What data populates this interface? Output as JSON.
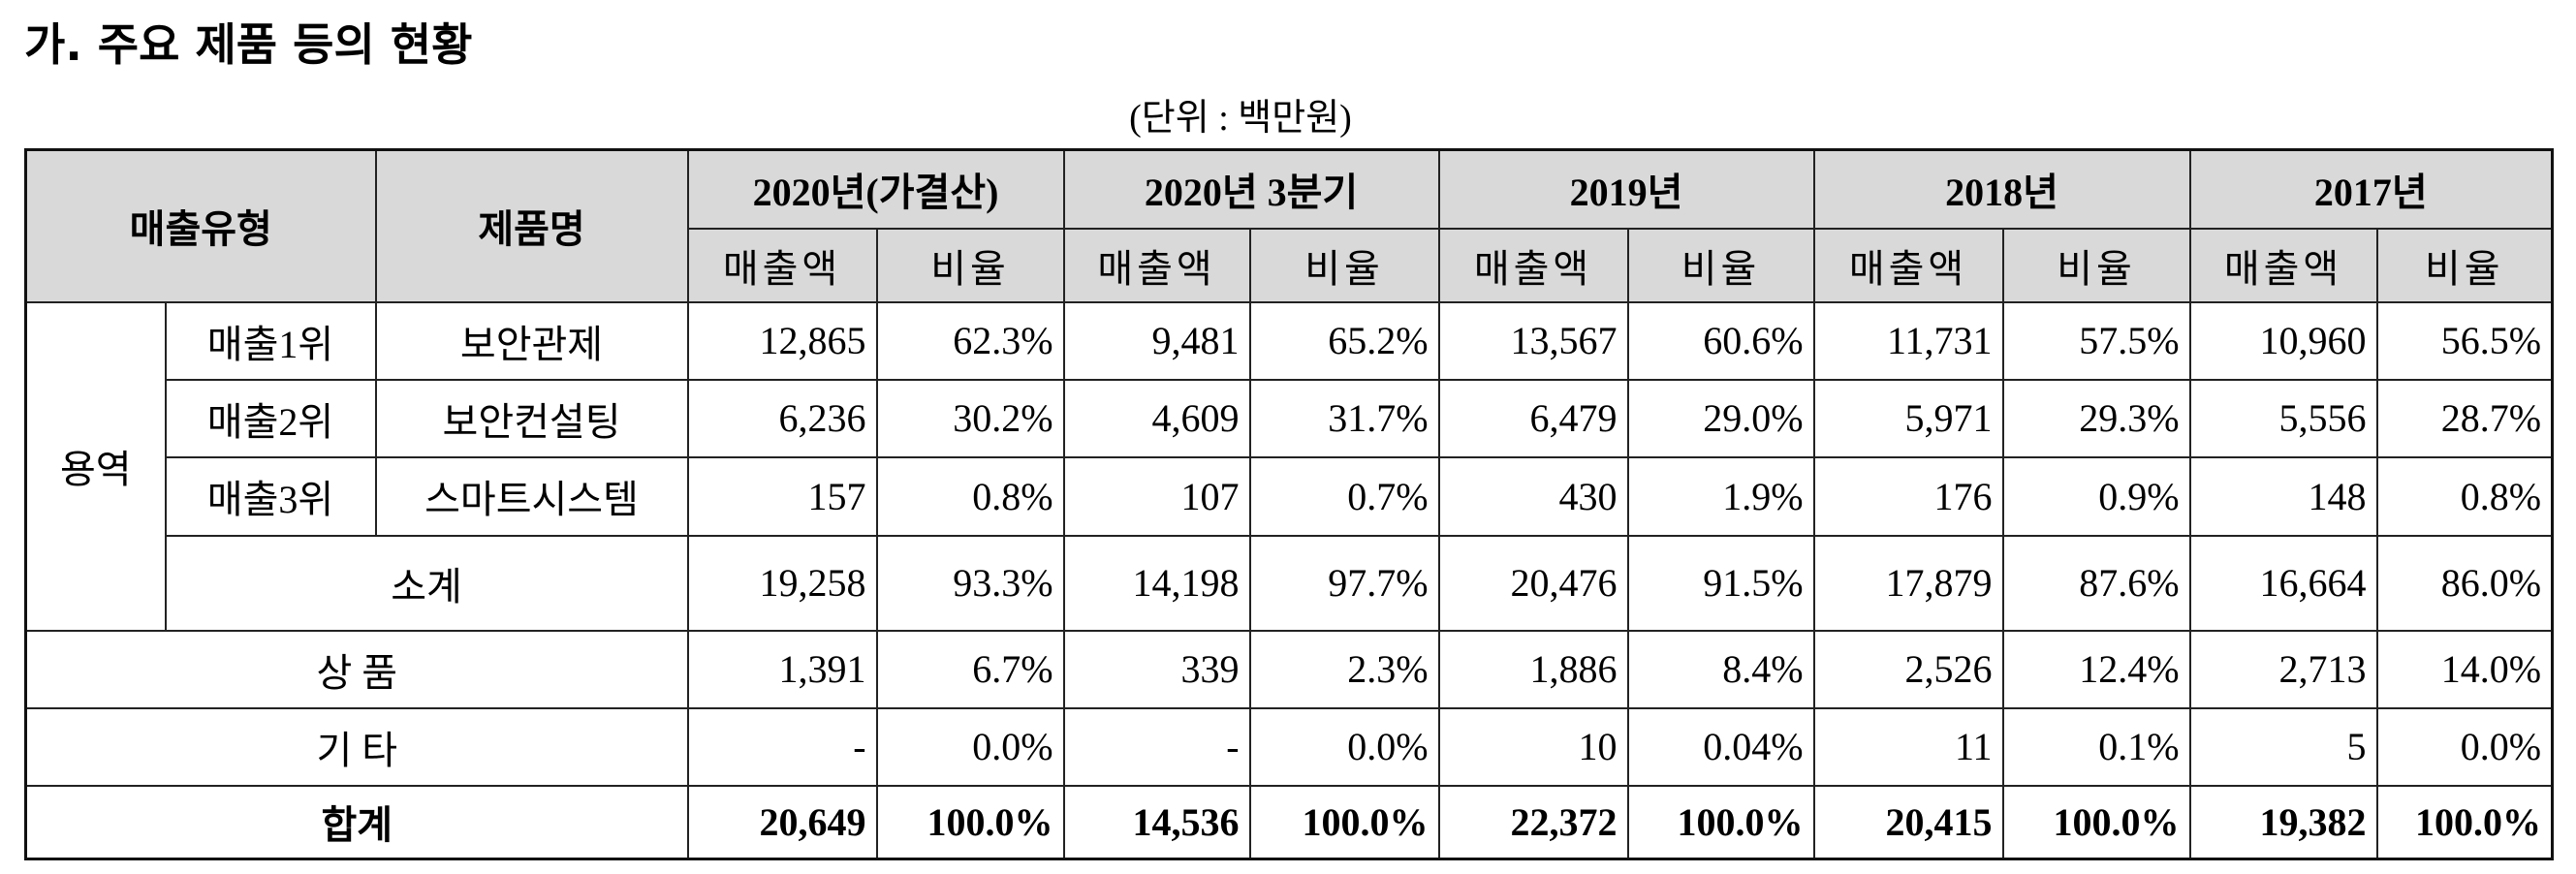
{
  "title": "가. 주요 제품 등의 현황",
  "unit": "(단위 : 백만원)",
  "table": {
    "header": {
      "type_label": "매출유형",
      "product_label": "제품명",
      "periods": [
        "2020년(가결산)",
        "2020년 3분기",
        "2019년",
        "2018년",
        "2017년"
      ],
      "sub": [
        "매출액",
        "비율"
      ]
    },
    "group": "용역",
    "rows": [
      {
        "rank": "매출1위",
        "name": "보안관제",
        "cells": [
          "12,865",
          "62.3%",
          "9,481",
          "65.2%",
          "13,567",
          "60.6%",
          "11,731",
          "57.5%",
          "10,960",
          "56.5%"
        ]
      },
      {
        "rank": "매출2위",
        "name": "보안컨설팅",
        "cells": [
          "6,236",
          "30.2%",
          "4,609",
          "31.7%",
          "6,479",
          "29.0%",
          "5,971",
          "29.3%",
          "5,556",
          "28.7%"
        ]
      },
      {
        "rank": "매출3위",
        "name": "스마트시스템",
        "cells": [
          "157",
          "0.8%",
          "107",
          "0.7%",
          "430",
          "1.9%",
          "176",
          "0.9%",
          "148",
          "0.8%"
        ]
      },
      {
        "name": "소계",
        "cells": [
          "19,258",
          "93.3%",
          "14,198",
          "97.7%",
          "20,476",
          "91.5%",
          "17,879",
          "87.6%",
          "16,664",
          "86.0%"
        ]
      },
      {
        "name": "상 품",
        "cells": [
          "1,391",
          "6.7%",
          "339",
          "2.3%",
          "1,886",
          "8.4%",
          "2,526",
          "12.4%",
          "2,713",
          "14.0%"
        ]
      },
      {
        "name": "기 타",
        "cells": [
          "-",
          "0.0%",
          "-",
          "0.0%",
          "10",
          "0.04%",
          "11",
          "0.1%",
          "5",
          "0.0%"
        ]
      },
      {
        "name": "합계",
        "cells": [
          "20,649",
          "100.0%",
          "14,536",
          "100.0%",
          "22,372",
          "100.0%",
          "20,415",
          "100.0%",
          "19,382",
          "100.0%"
        ]
      }
    ]
  }
}
